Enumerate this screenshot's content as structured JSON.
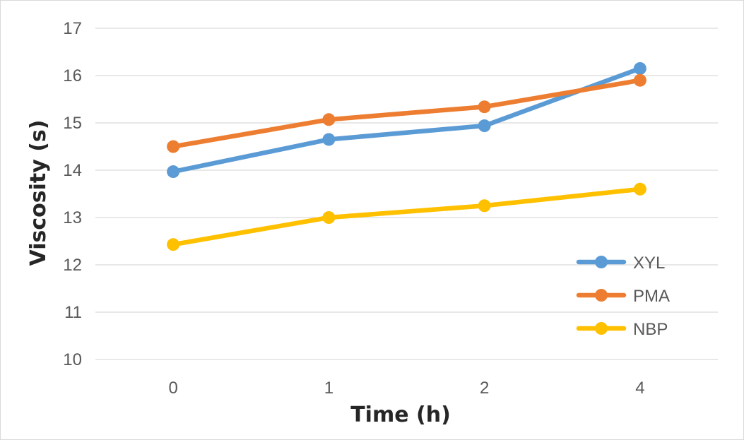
{
  "chart_data": {
    "type": "line",
    "xlabel": "Time (h)",
    "ylabel": "Viscosity (s)",
    "categories": [
      "0",
      "1",
      "2",
      "4"
    ],
    "ylim": [
      10,
      17
    ],
    "yticks": [
      "10",
      "11",
      "12",
      "13",
      "14",
      "15",
      "16",
      "17"
    ],
    "grid": true,
    "legend_position": "bottom-right",
    "series": [
      {
        "name": "XYL",
        "color": "#5b9bd5",
        "values": [
          13.97,
          14.65,
          14.94,
          16.15
        ]
      },
      {
        "name": "PMA",
        "color": "#ed7d31",
        "values": [
          14.5,
          15.07,
          15.34,
          15.9
        ]
      },
      {
        "name": "NBP",
        "color": "#ffc000",
        "values": [
          12.43,
          13.0,
          13.25,
          13.6
        ]
      }
    ]
  }
}
